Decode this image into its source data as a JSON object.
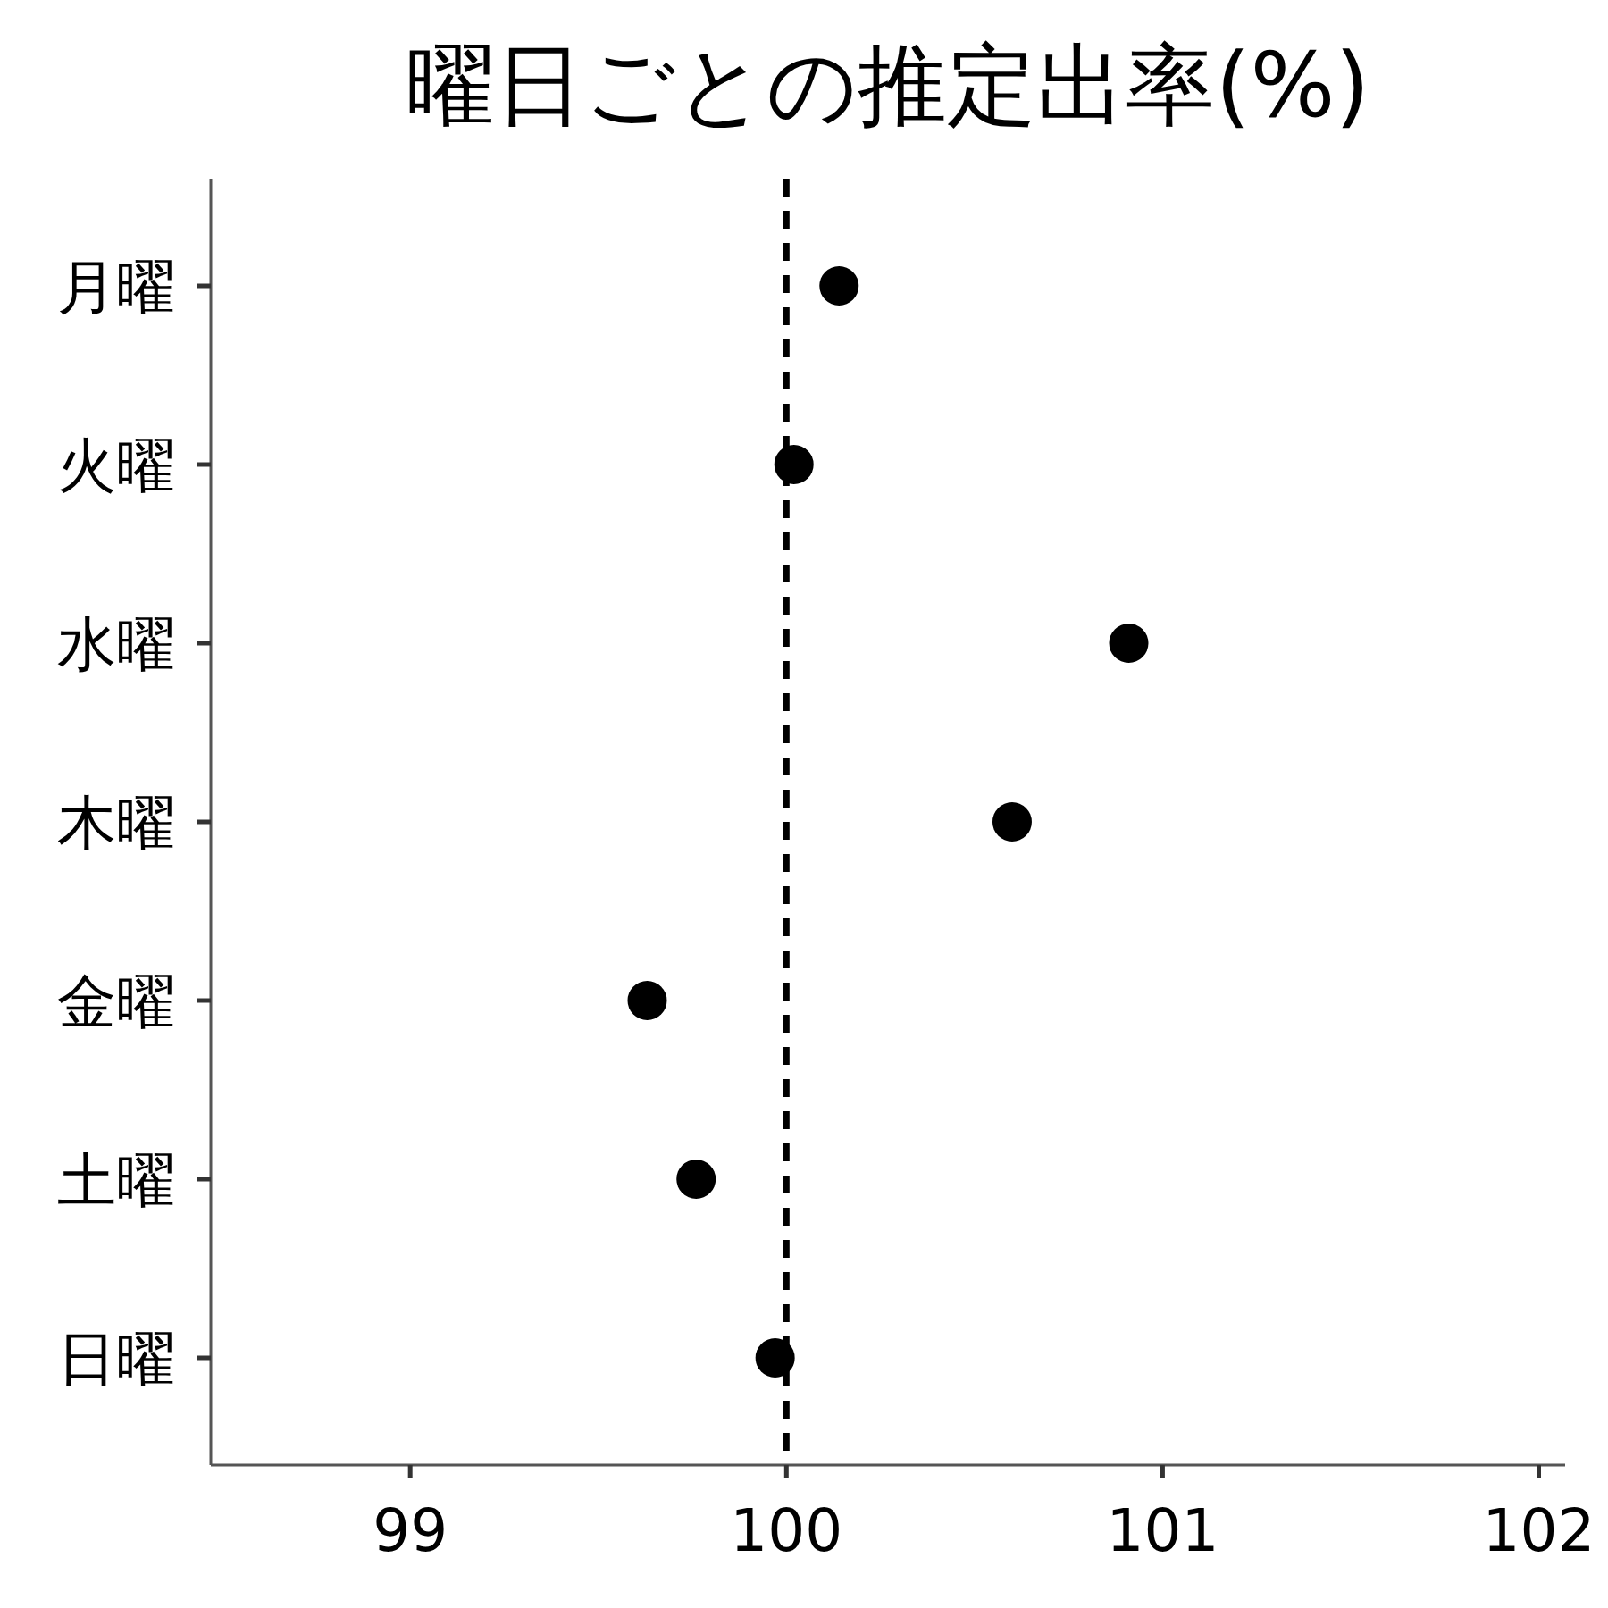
{
  "chart_data": {
    "type": "scatter",
    "orientation": "horizontal",
    "title": "曜日ごとの推定出率(%)",
    "categories": [
      "月曜",
      "火曜",
      "水曜",
      "木曜",
      "金曜",
      "土曜",
      "日曜"
    ],
    "values": [
      100.14,
      100.02,
      100.91,
      100.6,
      99.63,
      99.76,
      99.97
    ],
    "color": "#000000",
    "marker": "circle",
    "grid": false,
    "xlim": [
      98.47,
      102.07
    ],
    "xticks": [
      99,
      100,
      101,
      102
    ],
    "ref_lines": [
      {
        "axis": "x",
        "value": 100,
        "color": "#000000",
        "line_style": "dashed"
      }
    ]
  }
}
